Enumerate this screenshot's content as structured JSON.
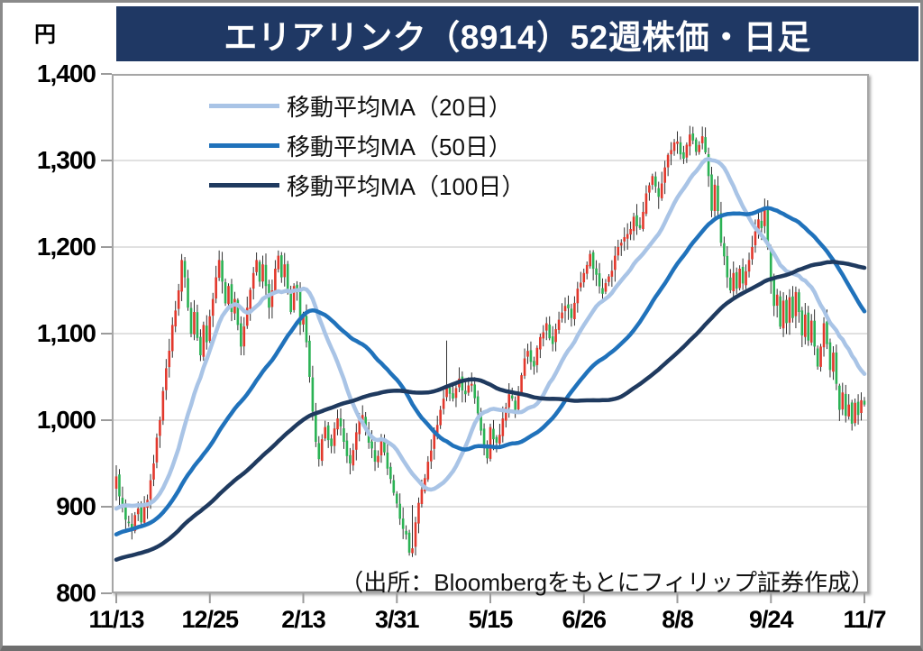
{
  "window": {
    "title": "エリアリンク（8914）52週株価・日足"
  },
  "colors": {
    "title_bg": "#1f3864",
    "title_fg": "#ffffff",
    "grid": "#d7d7d7",
    "axis_tick": "#9b9b9b",
    "plot_border": "#a6a6a6",
    "wick": "#1a1a1a"
  },
  "chart_data": {
    "type": "candlestick",
    "title": "エリアリンク（8914）52週株価・日足",
    "ylabel": "円",
    "source": "（出所：Bloombergをもとにフィリップ証券作成）",
    "grid": true,
    "legend_position": "top-left-inside",
    "y_axis": {
      "min": 800,
      "max": 1400,
      "step": 100,
      "tick_labels": [
        "1,400",
        "1,300",
        "1,200",
        "1,100",
        "1,000",
        "900",
        "800"
      ]
    },
    "x_axis": {
      "tick_labels": [
        "11/13",
        "12/25",
        "2/13",
        "3/31",
        "5/15",
        "6/26",
        "8/8",
        "9/24",
        "11/7"
      ],
      "days_between_ticks": 30,
      "total_days": 241
    },
    "series": [
      {
        "name": "移動平均MA（20日）",
        "window": 20,
        "color": "#a9c4e6"
      },
      {
        "name": "移動平均MA（50日）",
        "window": 50,
        "color": "#2072bb"
      },
      {
        "name": "移動平均MA（100日）",
        "window": 100,
        "color": "#1f3a5f"
      }
    ],
    "candle_colors": {
      "up": "#e2382c",
      "down": "#2bb254"
    },
    "close_keypoints": [
      [
        0,
        935
      ],
      [
        1,
        912
      ],
      [
        3,
        885
      ],
      [
        5,
        872
      ],
      [
        7,
        898
      ],
      [
        8,
        882
      ],
      [
        10,
        908
      ],
      [
        12,
        950
      ],
      [
        14,
        1000
      ],
      [
        16,
        1060
      ],
      [
        18,
        1110
      ],
      [
        20,
        1150
      ],
      [
        21,
        1185
      ],
      [
        22,
        1165
      ],
      [
        23,
        1130
      ],
      [
        24,
        1100
      ],
      [
        25,
        1125
      ],
      [
        26,
        1095
      ],
      [
        27,
        1075
      ],
      [
        28,
        1110
      ],
      [
        29,
        1090
      ],
      [
        30,
        1120
      ],
      [
        31,
        1140
      ],
      [
        32,
        1165
      ],
      [
        33,
        1185
      ],
      [
        34,
        1160
      ],
      [
        35,
        1135
      ],
      [
        36,
        1155
      ],
      [
        37,
        1125
      ],
      [
        38,
        1140
      ],
      [
        39,
        1110
      ],
      [
        40,
        1085
      ],
      [
        42,
        1130
      ],
      [
        44,
        1170
      ],
      [
        45,
        1185
      ],
      [
        46,
        1160
      ],
      [
        47,
        1180
      ],
      [
        48,
        1155
      ],
      [
        49,
        1130
      ],
      [
        50,
        1150
      ],
      [
        51,
        1175
      ],
      [
        52,
        1190
      ],
      [
        53,
        1165
      ],
      [
        54,
        1180
      ],
      [
        55,
        1150
      ],
      [
        56,
        1125
      ],
      [
        57,
        1155
      ],
      [
        58,
        1150
      ],
      [
        59,
        1110
      ],
      [
        60,
        1120
      ],
      [
        61,
        1090
      ],
      [
        62,
        1050
      ],
      [
        63,
        1010
      ],
      [
        64,
        975
      ],
      [
        65,
        955
      ],
      [
        67,
        992
      ],
      [
        69,
        970
      ],
      [
        71,
        1002
      ],
      [
        73,
        975
      ],
      [
        75,
        950
      ],
      [
        77,
        986
      ],
      [
        79,
        1006
      ],
      [
        81,
        974
      ],
      [
        83,
        952
      ],
      [
        85,
        976
      ],
      [
        87,
        944
      ],
      [
        89,
        916
      ],
      [
        91,
        886
      ],
      [
        93,
        868
      ],
      [
        94,
        847
      ],
      [
        95,
        852
      ],
      [
        96,
        882
      ],
      [
        98,
        920
      ],
      [
        100,
        952
      ],
      [
        102,
        986
      ],
      [
        104,
        1012
      ],
      [
        106,
        1040
      ],
      [
        108,
        1025
      ],
      [
        110,
        1048
      ],
      [
        112,
        1030
      ],
      [
        114,
        1042
      ],
      [
        116,
        1008
      ],
      [
        117,
        988
      ],
      [
        118,
        970
      ],
      [
        119,
        956
      ],
      [
        120,
        992
      ],
      [
        122,
        974
      ],
      [
        124,
        1002
      ],
      [
        126,
        1030
      ],
      [
        128,
        1012
      ],
      [
        130,
        1052
      ],
      [
        132,
        1080
      ],
      [
        134,
        1062
      ],
      [
        136,
        1096
      ],
      [
        138,
        1112
      ],
      [
        140,
        1088
      ],
      [
        142,
        1116
      ],
      [
        144,
        1132
      ],
      [
        146,
        1118
      ],
      [
        148,
        1152
      ],
      [
        150,
        1170
      ],
      [
        152,
        1192
      ],
      [
        154,
        1168
      ],
      [
        156,
        1146
      ],
      [
        158,
        1166
      ],
      [
        160,
        1190
      ],
      [
        162,
        1205
      ],
      [
        164,
        1215
      ],
      [
        166,
        1235
      ],
      [
        168,
        1222
      ],
      [
        170,
        1262
      ],
      [
        172,
        1282
      ],
      [
        174,
        1258
      ],
      [
        176,
        1292
      ],
      [
        178,
        1312
      ],
      [
        180,
        1322
      ],
      [
        182,
        1302
      ],
      [
        184,
        1330
      ],
      [
        186,
        1310
      ],
      [
        188,
        1328
      ],
      [
        190,
        1282
      ],
      [
        191,
        1242
      ],
      [
        192,
        1272
      ],
      [
        194,
        1205
      ],
      [
        196,
        1165
      ],
      [
        197,
        1150
      ],
      [
        198,
        1170
      ],
      [
        199,
        1152
      ],
      [
        200,
        1175
      ],
      [
        201,
        1158
      ],
      [
        202,
        1172
      ],
      [
        203,
        1185
      ],
      [
        204,
        1200
      ],
      [
        205,
        1218
      ],
      [
        206,
        1232
      ],
      [
        207,
        1222
      ],
      [
        208,
        1245
      ],
      [
        209,
        1200
      ],
      [
        210,
        1160
      ],
      [
        211,
        1132
      ],
      [
        212,
        1145
      ],
      [
        213,
        1108
      ],
      [
        214,
        1138
      ],
      [
        215,
        1112
      ],
      [
        216,
        1142
      ],
      [
        217,
        1118
      ],
      [
        218,
        1148
      ],
      [
        219,
        1125
      ],
      [
        220,
        1098
      ],
      [
        221,
        1122
      ],
      [
        222,
        1092
      ],
      [
        223,
        1115
      ],
      [
        224,
        1085
      ],
      [
        225,
        1062
      ],
      [
        226,
        1085
      ],
      [
        227,
        1112
      ],
      [
        228,
        1088
      ],
      [
        229,
        1058
      ],
      [
        230,
        1078
      ],
      [
        231,
        1042
      ],
      [
        232,
        1012
      ],
      [
        233,
        1032
      ],
      [
        234,
        1005
      ],
      [
        235,
        1018
      ],
      [
        236,
        996
      ],
      [
        237,
        1020
      ],
      [
        238,
        1006
      ],
      [
        239,
        1023
      ],
      [
        240,
        1018
      ]
    ],
    "prehistory_keypoints": [
      [
        -100,
        788
      ],
      [
        -80,
        805
      ],
      [
        -60,
        822
      ],
      [
        -45,
        832
      ],
      [
        -30,
        855
      ],
      [
        -20,
        870
      ],
      [
        -12,
        890
      ],
      [
        -6,
        905
      ],
      [
        -1,
        922
      ]
    ],
    "wick_overrides": {
      "21": {
        "high": 1192
      },
      "52": {
        "high": 1196
      },
      "95": {
        "low": 842,
        "high": 902
      },
      "106": {
        "high": 1092
      },
      "184": {
        "high": 1340
      },
      "208": {
        "high": 1256
      },
      "236": {
        "low": 988
      }
    }
  }
}
